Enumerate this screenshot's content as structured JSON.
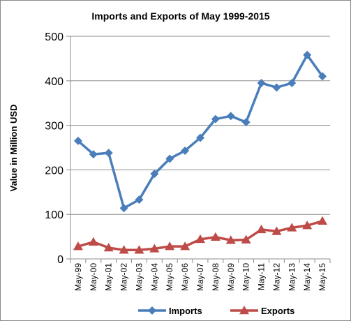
{
  "chart_data": {
    "type": "line",
    "title": "Imports and Exports of May 1999-2015",
    "xlabel": "",
    "ylabel": "Value in Million USD",
    "categories": [
      "May-99",
      "May-00",
      "May-01",
      "May-02",
      "May-03",
      "May-04",
      "May-05",
      "May-06",
      "May-07",
      "May-08",
      "May-09",
      "May-10",
      "May-11",
      "May-12",
      "May-13",
      "May-14",
      "May-15"
    ],
    "series": [
      {
        "name": "Imports",
        "color": "#4a7ebb",
        "marker": "diamond",
        "values": [
          265,
          235,
          238,
          114,
          133,
          191,
          225,
          243,
          272,
          314,
          321,
          307,
          395,
          385,
          395,
          458,
          410
        ]
      },
      {
        "name": "Exports",
        "color": "#be4b48",
        "marker": "triangle",
        "values": [
          28,
          38,
          25,
          20,
          20,
          23,
          28,
          28,
          44,
          49,
          42,
          43,
          66,
          62,
          70,
          75,
          85
        ]
      }
    ],
    "ylim": [
      0,
      500
    ],
    "yticks": [
      0,
      100,
      200,
      300,
      400,
      500
    ],
    "grid": true,
    "legend_position": "bottom"
  }
}
